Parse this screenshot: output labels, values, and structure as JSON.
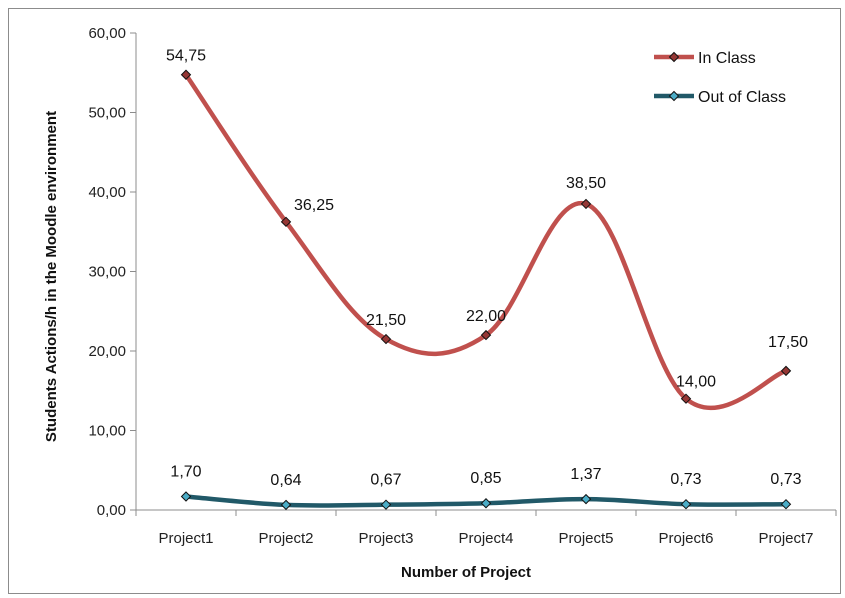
{
  "chart_data": {
    "type": "line",
    "smooth": true,
    "categories": [
      "Project1",
      "Project2",
      "Project3",
      "Project4",
      "Project5",
      "Project6",
      "Project7"
    ],
    "series": [
      {
        "name": "In Class",
        "values": [
          54.75,
          36.25,
          21.5,
          22.0,
          38.5,
          14.0,
          17.5
        ],
        "labels": [
          "54,75",
          "36,25",
          "21,50",
          "22,00",
          "38,50",
          "14,00",
          "17,50"
        ],
        "color": "#c0504d",
        "marker_fill": "#953735"
      },
      {
        "name": "Out of Class",
        "values": [
          1.7,
          0.64,
          0.67,
          0.85,
          1.37,
          0.73,
          0.73
        ],
        "labels": [
          "1,70",
          "0,64",
          "0,67",
          "0,85",
          "1,37",
          "0,73",
          "0,73"
        ],
        "color": "#215968",
        "marker_fill": "#4bacc6"
      }
    ],
    "xlabel": "Number of Project",
    "ylabel": "Students Actions/h in the Moodle environment",
    "ylim": [
      0,
      60
    ],
    "yticks": [
      "0,00",
      "10,00",
      "20,00",
      "30,00",
      "40,00",
      "50,00",
      "60,00"
    ],
    "grid": false,
    "legend": "top-right"
  }
}
